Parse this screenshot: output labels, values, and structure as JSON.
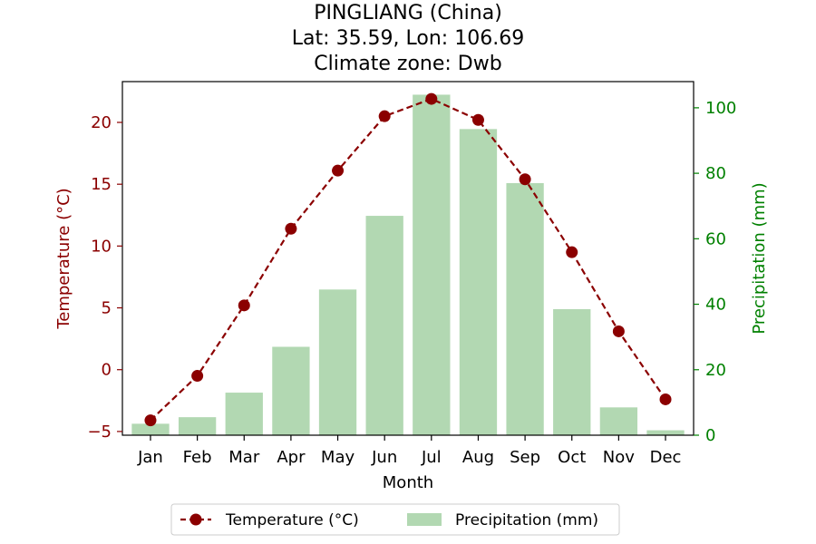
{
  "chart_data": {
    "type": "bar+line",
    "title_lines": [
      "PINGLIANG (China)",
      "Lat: 35.59, Lon: 106.69",
      "Climate zone: Dwb"
    ],
    "xlabel": "Month",
    "ylabel_left": "Temperature (°C)",
    "ylabel_right": "Precipitation (mm)",
    "categories": [
      "Jan",
      "Feb",
      "Mar",
      "Apr",
      "May",
      "Jun",
      "Jul",
      "Aug",
      "Sep",
      "Oct",
      "Nov",
      "Dec"
    ],
    "series": [
      {
        "name": "Temperature (°C)",
        "type": "line",
        "axis": "left",
        "color": "#8b0000",
        "values": [
          -4.1,
          -0.5,
          5.2,
          11.4,
          16.1,
          20.5,
          21.9,
          20.2,
          15.4,
          9.5,
          3.1,
          -2.4
        ]
      },
      {
        "name": "Precipitation (mm)",
        "type": "bar",
        "axis": "right",
        "color": "#b2d8b2",
        "values": [
          3.5,
          5.5,
          13,
          27,
          44.5,
          67,
          104,
          93.5,
          77,
          38.5,
          8.5,
          1.5
        ]
      }
    ],
    "ylim_left": [
      -5.3,
      23.3
    ],
    "ylim_right": [
      0,
      108
    ],
    "yticks_left": [
      -5,
      0,
      5,
      10,
      15,
      20
    ],
    "yticks_left_labels": [
      "−5",
      "0",
      "5",
      "10",
      "15",
      "20"
    ],
    "yticks_right": [
      0,
      20,
      40,
      60,
      80,
      100
    ],
    "yticks_right_labels": [
      "0",
      "20",
      "40",
      "60",
      "80",
      "100"
    ],
    "left_axis_color": "#8b0000",
    "right_axis_color": "#008000",
    "grid": false,
    "legend_placement": "bottom-center"
  }
}
